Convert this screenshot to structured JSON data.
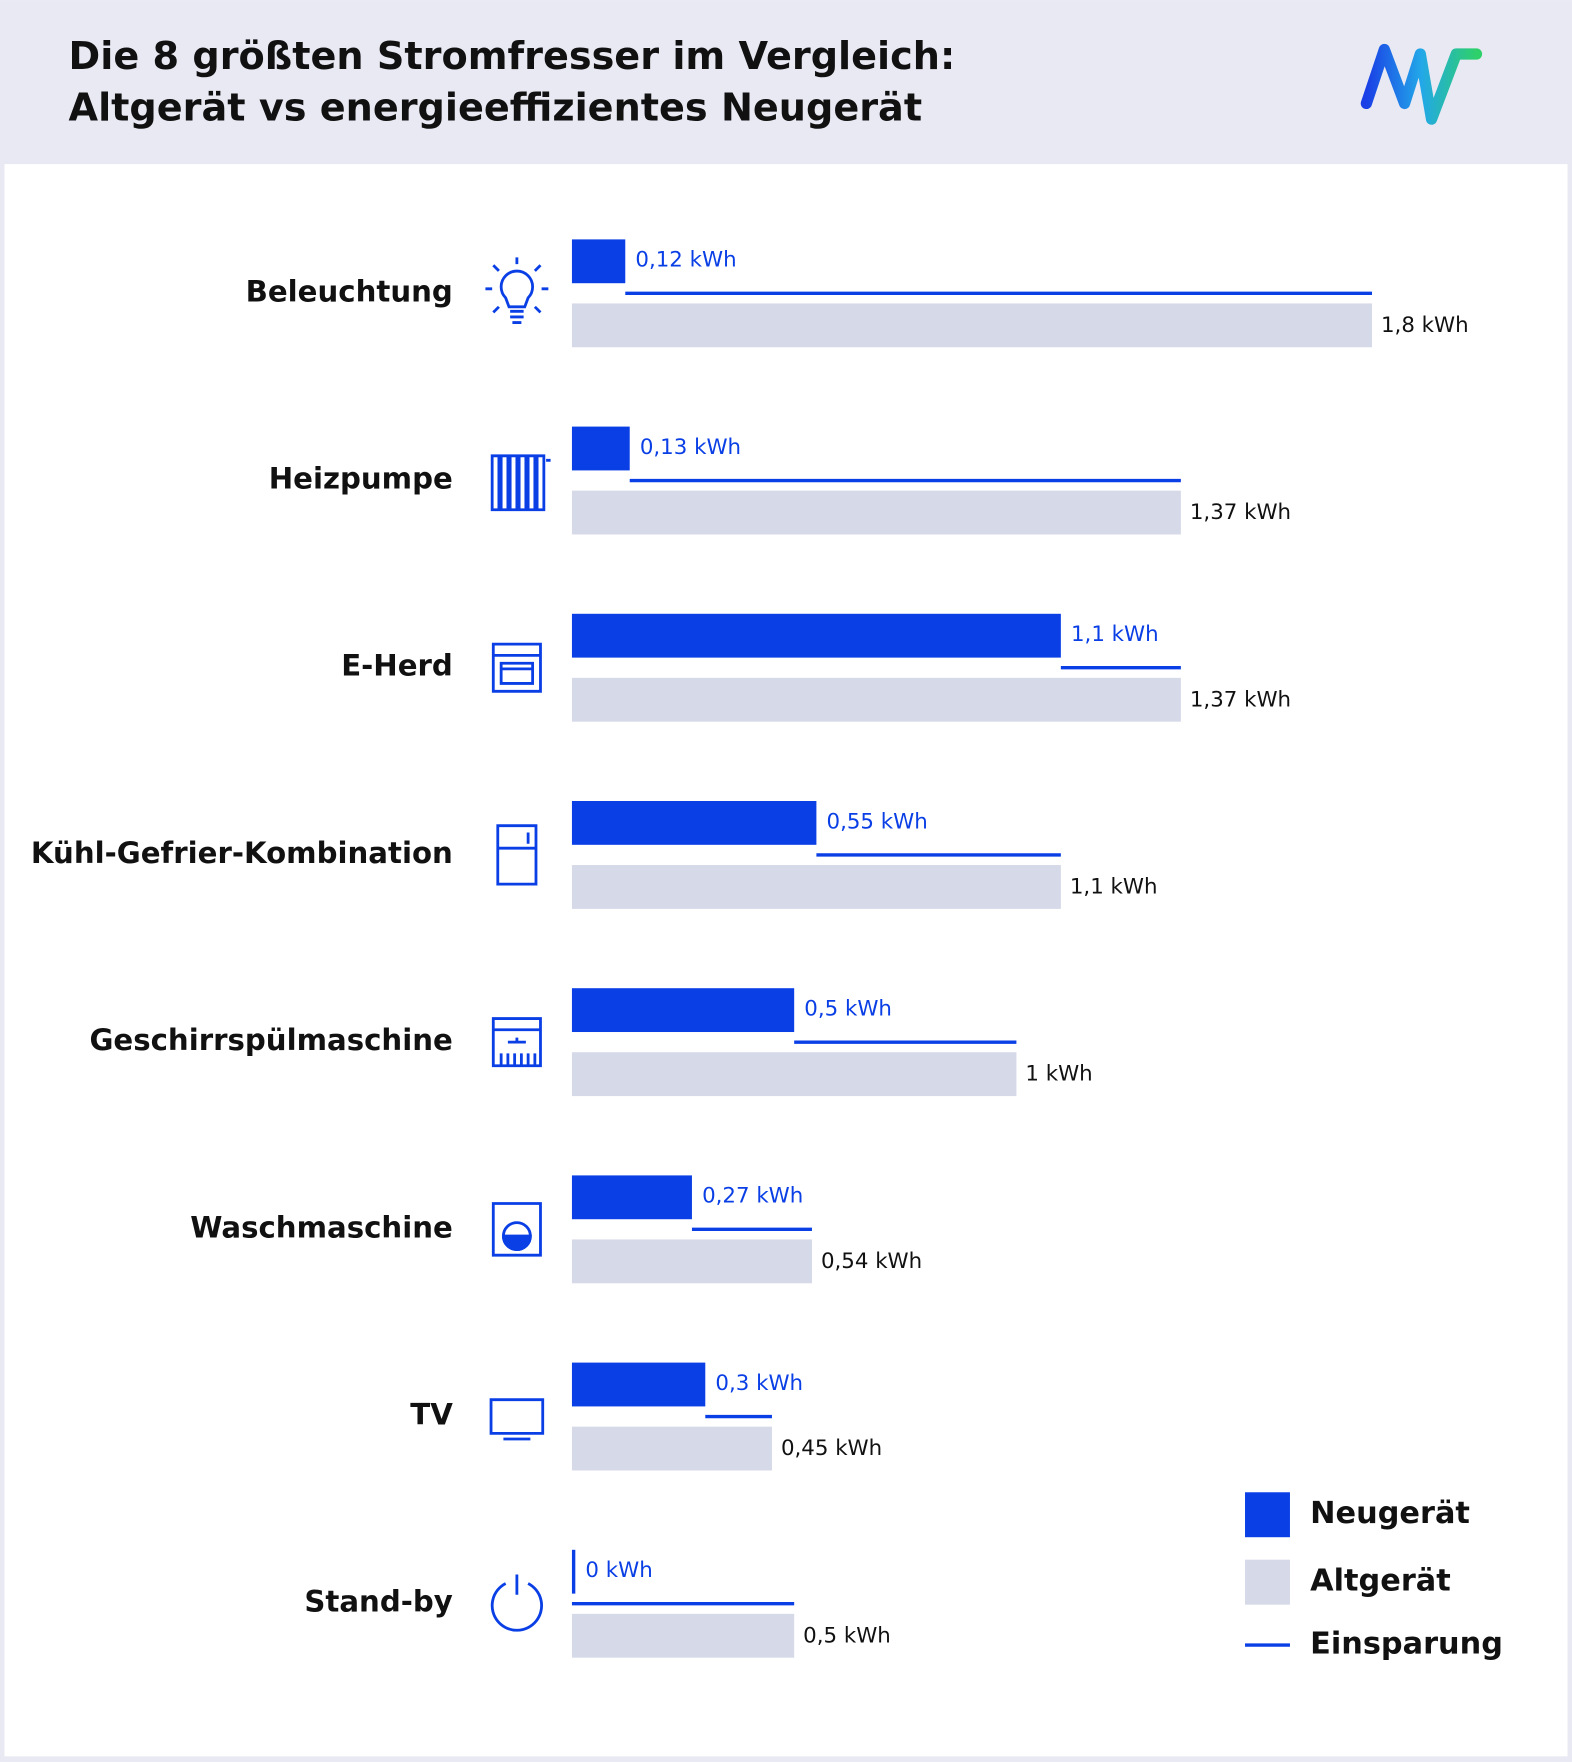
{
  "chart_data": {
    "type": "bar",
    "orientation": "horizontal",
    "title": [
      "Die 8 größten Stromfresser im Vergleich:",
      "Altgerät vs energieeffizientes Neugerät"
    ],
    "categories": [
      "Beleuchtung",
      "Heizpumpe",
      "E-Herd",
      "Kühl-Gefrier-Kombination",
      "Geschirrspülmaschine",
      "Waschmaschine",
      "TV",
      "Stand-by"
    ],
    "series": [
      {
        "name": "Neugerät",
        "color": "#0a3fe6",
        "values": [
          0.12,
          0.13,
          1.1,
          0.55,
          0.5,
          0.27,
          0.3,
          0
        ],
        "value_labels": [
          "0,12 kWh",
          "0,13 kWh",
          "1,1 kWh",
          "0,55 kWh",
          "0,5 kWh",
          "0,27 kWh",
          "0,3 kWh",
          "0 kWh"
        ]
      },
      {
        "name": "Altgerät",
        "color": "#d5d9e8",
        "values": [
          1.8,
          1.37,
          1.37,
          1.1,
          1,
          0.54,
          0.45,
          0.5
        ],
        "value_labels": [
          "1,8 kWh",
          "1,37 kWh",
          "1,37 kWh",
          "1,1 kWh",
          "1 kWh",
          "0,54 kWh",
          "0,45 kWh",
          "0,5 kWh"
        ]
      }
    ],
    "savings": {
      "name": "Einsparung",
      "color": "#0a3fe6"
    }
  }
}
